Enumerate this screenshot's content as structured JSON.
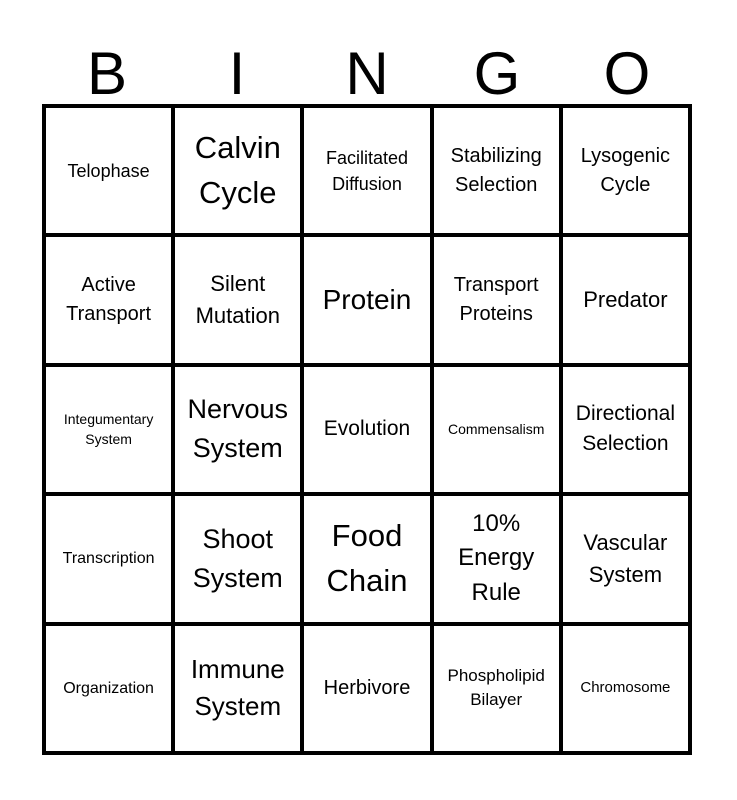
{
  "title": {
    "letters": [
      "B",
      "I",
      "N",
      "G",
      "O"
    ]
  },
  "grid": {
    "rows": 5,
    "cols": 5,
    "cells": [
      {
        "label": "Telophase"
      },
      {
        "label": "Calvin Cycle"
      },
      {
        "label": "Facilitated Diffusion"
      },
      {
        "label": "Stabilizing Selection"
      },
      {
        "label": "Lysogenic Cycle"
      },
      {
        "label": "Active Transport"
      },
      {
        "label": "Silent Mutation"
      },
      {
        "label": "Protein"
      },
      {
        "label": "Transport Proteins"
      },
      {
        "label": "Predator"
      },
      {
        "label": "Integumentary System"
      },
      {
        "label": "Nervous System"
      },
      {
        "label": "Evolution"
      },
      {
        "label": "Commensalism"
      },
      {
        "label": "Directional Selection"
      },
      {
        "label": "Transcription"
      },
      {
        "label": "Shoot System"
      },
      {
        "label": "Food Chain"
      },
      {
        "label": "10% Energy Rule"
      },
      {
        "label": "Vascular System"
      },
      {
        "label": "Organization"
      },
      {
        "label": "Immune System"
      },
      {
        "label": "Herbivore"
      },
      {
        "label": "Phospholipid Bilayer"
      },
      {
        "label": "Chromosome"
      }
    ]
  },
  "colors": {
    "grid_line": "#000000",
    "cell_background": "#ffffff",
    "text": "#000000"
  }
}
